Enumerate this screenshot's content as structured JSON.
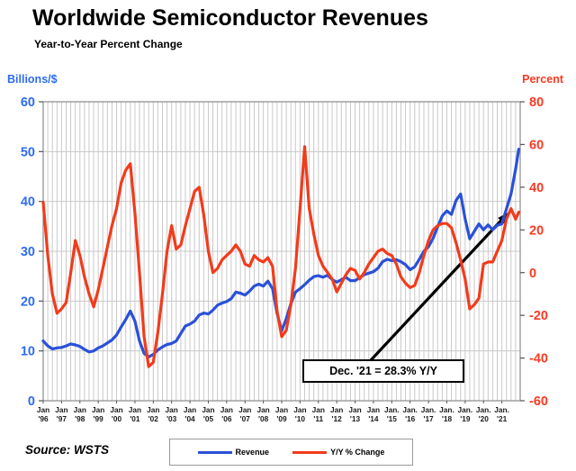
{
  "header": {
    "title": "Worldwide Semiconductor Revenues",
    "subtitle": "Year-to-Year Percent Change"
  },
  "axes": {
    "left_title": "Billions/$",
    "right_title": "Percent",
    "left_ticks": [
      60,
      50,
      40,
      30,
      20,
      10,
      0
    ],
    "right_ticks": [
      80,
      60,
      40,
      20,
      0,
      -20,
      -40,
      -60
    ],
    "x_labels": [
      {
        "m": "Jan",
        "y": "'96"
      },
      {
        "m": "Jan",
        "y": "'97"
      },
      {
        "m": "Jan",
        "y": "'98"
      },
      {
        "m": "Jan",
        "y": "'99"
      },
      {
        "m": "Jan",
        "y": "'00"
      },
      {
        "m": "Jan",
        "y": "'01"
      },
      {
        "m": "Jan",
        "y": "'02"
      },
      {
        "m": "Jan",
        "y": "'03"
      },
      {
        "m": "Jan",
        "y": "'04"
      },
      {
        "m": "Jan",
        "y": "'05"
      },
      {
        "m": "Jan",
        "y": "'06"
      },
      {
        "m": "Jan",
        "y": "'07"
      },
      {
        "m": "Jan",
        "y": "'08"
      },
      {
        "m": "Jan",
        "y": "'09"
      },
      {
        "m": "Jan",
        "y": "'10"
      },
      {
        "m": "Jan",
        "y": "'11"
      },
      {
        "m": "Jan",
        "y": "'12"
      },
      {
        "m": "Jan",
        "y": "'13"
      },
      {
        "m": "Jan",
        "y": "'14"
      },
      {
        "m": "Jan.",
        "y": "'15"
      },
      {
        "m": "Jan.",
        "y": "'16"
      },
      {
        "m": "Jan.",
        "y": "'17"
      },
      {
        "m": "Jan.",
        "y": "'18"
      },
      {
        "m": "Jan.",
        "y": "'19"
      },
      {
        "m": "Jan.",
        "y": "'20"
      },
      {
        "m": "Jan.",
        "y": "'21"
      }
    ]
  },
  "annotation": {
    "text": "Dec. '21 = 28.3% Y/Y"
  },
  "source": {
    "text": "Source: WSTS"
  },
  "colors": {
    "revenue": "#2a50d9",
    "yoy": "#f23b1b",
    "axis_left_text": "#2e6bf0",
    "axis_right_text": "#fb3a22",
    "grid": "#c9c9c9",
    "frame": "#8a8a8a",
    "tick": "#555555",
    "x_text": "#1a1a1a",
    "arrow": "#000000"
  },
  "chart_data": {
    "type": "line",
    "title": "Worldwide Semiconductor Revenues",
    "subtitle": "Year-to-Year Percent Change",
    "x_range": [
      1996,
      2022
    ],
    "left_ylim": [
      0,
      60
    ],
    "right_ylim": [
      -60,
      80
    ],
    "left_axis_label": "Billions/$",
    "right_axis_label": "Percent",
    "grid": "on",
    "legend_position": "bottom",
    "x": [
      1996.0,
      1996.25,
      1996.5,
      1996.75,
      1997.0,
      1997.25,
      1997.5,
      1997.75,
      1998.0,
      1998.25,
      1998.5,
      1998.75,
      1999.0,
      1999.25,
      1999.5,
      1999.75,
      2000.0,
      2000.25,
      2000.5,
      2000.75,
      2001.0,
      2001.25,
      2001.5,
      2001.75,
      2002.0,
      2002.25,
      2002.5,
      2002.75,
      2003.0,
      2003.25,
      2003.5,
      2003.75,
      2004.0,
      2004.25,
      2004.5,
      2004.75,
      2005.0,
      2005.25,
      2005.5,
      2005.75,
      2006.0,
      2006.25,
      2006.5,
      2006.75,
      2007.0,
      2007.25,
      2007.5,
      2007.75,
      2008.0,
      2008.25,
      2008.5,
      2008.75,
      2009.0,
      2009.25,
      2009.5,
      2009.75,
      2010.0,
      2010.25,
      2010.5,
      2010.75,
      2011.0,
      2011.25,
      2011.5,
      2011.75,
      2012.0,
      2012.25,
      2012.5,
      2012.75,
      2013.0,
      2013.25,
      2013.5,
      2013.75,
      2014.0,
      2014.25,
      2014.5,
      2014.75,
      2015.0,
      2015.25,
      2015.5,
      2015.75,
      2016.0,
      2016.25,
      2016.5,
      2016.75,
      2017.0,
      2017.25,
      2017.5,
      2017.75,
      2018.0,
      2018.25,
      2018.5,
      2018.75,
      2019.0,
      2019.25,
      2019.5,
      2019.75,
      2020.0,
      2020.25,
      2020.5,
      2020.75,
      2021.0,
      2021.25,
      2021.5,
      2021.75,
      2021.92
    ],
    "series": [
      {
        "name": "Revenue",
        "axis": "left",
        "color_key": "revenue",
        "values": [
          12.0,
          11.0,
          10.4,
          10.6,
          10.7,
          11.0,
          11.4,
          11.2,
          10.9,
          10.3,
          9.8,
          10.0,
          10.6,
          11.0,
          11.6,
          12.2,
          13.2,
          14.8,
          16.3,
          18.0,
          16.0,
          12.0,
          9.5,
          8.8,
          9.3,
          10.2,
          10.8,
          11.3,
          11.5,
          12.0,
          13.5,
          15.0,
          15.4,
          16.0,
          17.2,
          17.6,
          17.4,
          18.2,
          19.2,
          19.6,
          19.9,
          20.5,
          21.8,
          21.6,
          21.2,
          22.0,
          23.0,
          23.4,
          23.0,
          24.0,
          22.5,
          17.5,
          14.0,
          16.5,
          19.5,
          21.8,
          22.5,
          23.3,
          24.2,
          24.9,
          25.1,
          24.8,
          25.2,
          24.3,
          23.8,
          24.3,
          24.8,
          24.1,
          24.1,
          24.7,
          25.3,
          25.6,
          25.9,
          26.6,
          27.9,
          28.4,
          28.1,
          28.3,
          27.9,
          27.3,
          26.3,
          26.9,
          28.4,
          30.0,
          30.9,
          32.6,
          34.9,
          37.1,
          38.1,
          37.4,
          40.2,
          41.5,
          36.5,
          32.5,
          34.0,
          35.5,
          34.3,
          35.3,
          34.3,
          35.2,
          35.5,
          38.5,
          41.5,
          46.5,
          50.5
        ]
      },
      {
        "name": "Y/Y % Change",
        "axis": "right",
        "color_key": "yoy",
        "values": [
          33,
          8,
          -10,
          -19,
          -17,
          -14,
          0,
          15,
          8,
          -2,
          -10,
          -16,
          -8,
          2,
          12,
          22,
          30,
          42,
          48,
          51,
          28,
          0,
          -30,
          -44,
          -42,
          -28,
          -10,
          10,
          22,
          11,
          13,
          22,
          30,
          38,
          40,
          27,
          10,
          0,
          2,
          6,
          8,
          10,
          13,
          10,
          4,
          3,
          8,
          6,
          5,
          7,
          3,
          -18,
          -30,
          -27,
          -15,
          2,
          30,
          59,
          30,
          18,
          8,
          3,
          0,
          -3,
          -9,
          -5,
          -1,
          2,
          1,
          -3,
          0,
          4,
          7,
          10,
          11,
          9,
          8,
          4,
          -2,
          -5,
          -7,
          -6,
          0,
          8,
          15,
          20,
          22,
          23,
          23,
          21,
          14,
          6,
          -3,
          -17,
          -15,
          -12,
          4,
          5,
          5,
          10,
          15,
          25,
          30,
          25,
          28.3
        ]
      }
    ],
    "annotation": {
      "text": "Dec. '21 = 28.3% Y/Y",
      "points_to": {
        "x": 2021.92,
        "value": 28.3,
        "axis": "right"
      }
    }
  }
}
